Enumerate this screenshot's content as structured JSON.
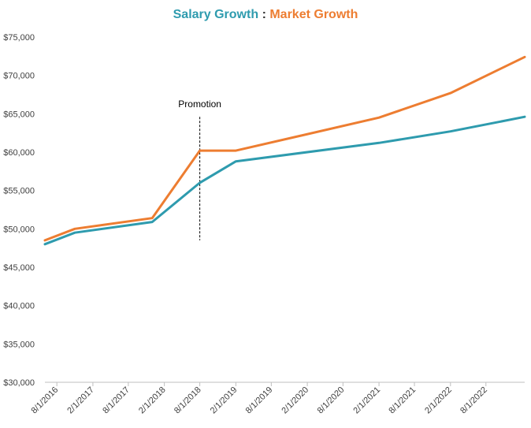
{
  "chart_data": {
    "type": "line",
    "title": {
      "part1": "Salary Growth",
      "separator": ":",
      "part2": "Market Growth"
    },
    "colors": {
      "salary": "#2E9BAE",
      "market": "#ED7D31",
      "annotation_line": "#000000"
    },
    "ylim": [
      30000,
      75000
    ],
    "y_ticks": [
      {
        "value": 30000,
        "label": "$30,000"
      },
      {
        "value": 35000,
        "label": "$35,000"
      },
      {
        "value": 40000,
        "label": "$40,000"
      },
      {
        "value": 45000,
        "label": "$45,000"
      },
      {
        "value": 50000,
        "label": "$50,000"
      },
      {
        "value": 55000,
        "label": "$55,000"
      },
      {
        "value": 60000,
        "label": "$60,000"
      },
      {
        "value": 65000,
        "label": "$65,000"
      },
      {
        "value": 70000,
        "label": "$70,000"
      },
      {
        "value": 75000,
        "label": "$75,000"
      }
    ],
    "x_ticks": [
      "8/1/2016",
      "2/1/2017",
      "8/1/2017",
      "2/1/2018",
      "8/1/2018",
      "2/1/2019",
      "8/1/2019",
      "2/1/2020",
      "8/1/2020",
      "2/1/2021",
      "8/1/2021",
      "2/1/2022",
      "8/1/2022"
    ],
    "xlim": [
      "2016-06-01",
      "2023-02-15"
    ],
    "series": [
      {
        "key": "salary",
        "points": [
          {
            "x": "2016-06-01",
            "y": 48000
          },
          {
            "x": "2016-11-01",
            "y": 49500
          },
          {
            "x": "2017-12-01",
            "y": 50900
          },
          {
            "x": "2018-08-01",
            "y": 56000
          },
          {
            "x": "2019-02-01",
            "y": 58800
          },
          {
            "x": "2021-02-01",
            "y": 61200
          },
          {
            "x": "2022-02-01",
            "y": 62700
          },
          {
            "x": "2023-02-15",
            "y": 64600
          }
        ]
      },
      {
        "key": "market",
        "points": [
          {
            "x": "2016-06-01",
            "y": 48500
          },
          {
            "x": "2016-11-01",
            "y": 50000
          },
          {
            "x": "2017-12-01",
            "y": 51400
          },
          {
            "x": "2018-08-01",
            "y": 60200
          },
          {
            "x": "2019-02-01",
            "y": 60200
          },
          {
            "x": "2021-02-01",
            "y": 64500
          },
          {
            "x": "2022-02-01",
            "y": 67700
          },
          {
            "x": "2023-02-15",
            "y": 72400
          }
        ]
      }
    ],
    "annotations": [
      {
        "label": "Promotion",
        "x": "2018-08-01",
        "y_from": 48500,
        "y_to": 64600
      }
    ],
    "grid": false,
    "legend": "none"
  }
}
